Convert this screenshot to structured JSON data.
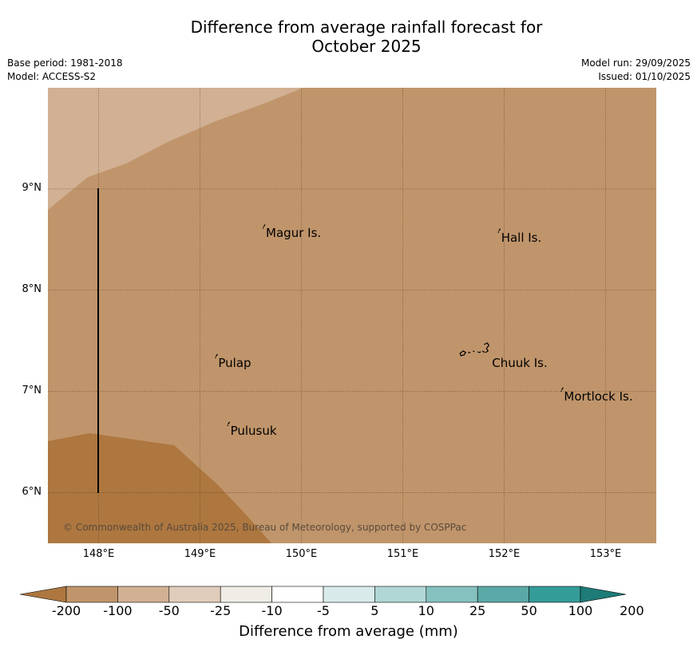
{
  "title": {
    "line1": "Difference from average rainfall forecast for",
    "line2": "October 2025"
  },
  "meta": {
    "base_period": "Base period: 1981-2018",
    "model": "Model: ACCESS-S2",
    "model_run": "Model run: 29/09/2025",
    "issued": "Issued: 01/10/2025"
  },
  "map": {
    "extent": {
      "lon_min": 147.5,
      "lon_max": 153.5,
      "lat_min": 5.5,
      "lat_max": 10.0
    },
    "colors": {
      "-100_-50": "#c0956b",
      "-50_-25": "#d1b093",
      "-200_-100": "#ad773f"
    },
    "copyright": "© Commonwealth of Australia 2025, Bureau of Meteorology, supported by COSPPac",
    "lat_ticks": [
      {
        "value": 9,
        "label": "9°N"
      },
      {
        "value": 8,
        "label": "8°N"
      },
      {
        "value": 7,
        "label": "7°N"
      },
      {
        "value": 6,
        "label": "6°N"
      }
    ],
    "lon_ticks": [
      {
        "value": 148,
        "label": "148°E"
      },
      {
        "value": 149,
        "label": "149°E"
      },
      {
        "value": 150,
        "label": "150°E"
      },
      {
        "value": 151,
        "label": "151°E"
      },
      {
        "value": 152,
        "label": "152°E"
      },
      {
        "value": 153,
        "label": "153°E"
      }
    ],
    "places": [
      {
        "name": "Magur Is.",
        "lon": 149.65,
        "lat": 8.57
      },
      {
        "name": "Hall Is.",
        "lon": 151.97,
        "lat": 8.53
      },
      {
        "name": "Pulap",
        "lon": 149.18,
        "lat": 7.29
      },
      {
        "name": "Chuuk Is.",
        "lon": 151.88,
        "lat": 7.29
      },
      {
        "name": "Mortlock Is.",
        "lon": 152.59,
        "lat": 6.96
      },
      {
        "name": "Pulusuk",
        "lon": 149.3,
        "lat": 6.62
      }
    ]
  },
  "colorbar": {
    "title": "Difference from average (mm)",
    "labels": [
      "-200",
      "-100",
      "-50",
      "-25",
      "-10",
      "-5",
      "5",
      "10",
      "25",
      "50",
      "100",
      "200"
    ],
    "colors": [
      "#ad773f",
      "#c0956b",
      "#d1b093",
      "#e1cdbb",
      "#f0ece6",
      "#ffffff",
      "#d9ebea",
      "#b0d6d5",
      "#85c1be",
      "#5ba9a6",
      "#349c98",
      "#1e7b77"
    ]
  }
}
